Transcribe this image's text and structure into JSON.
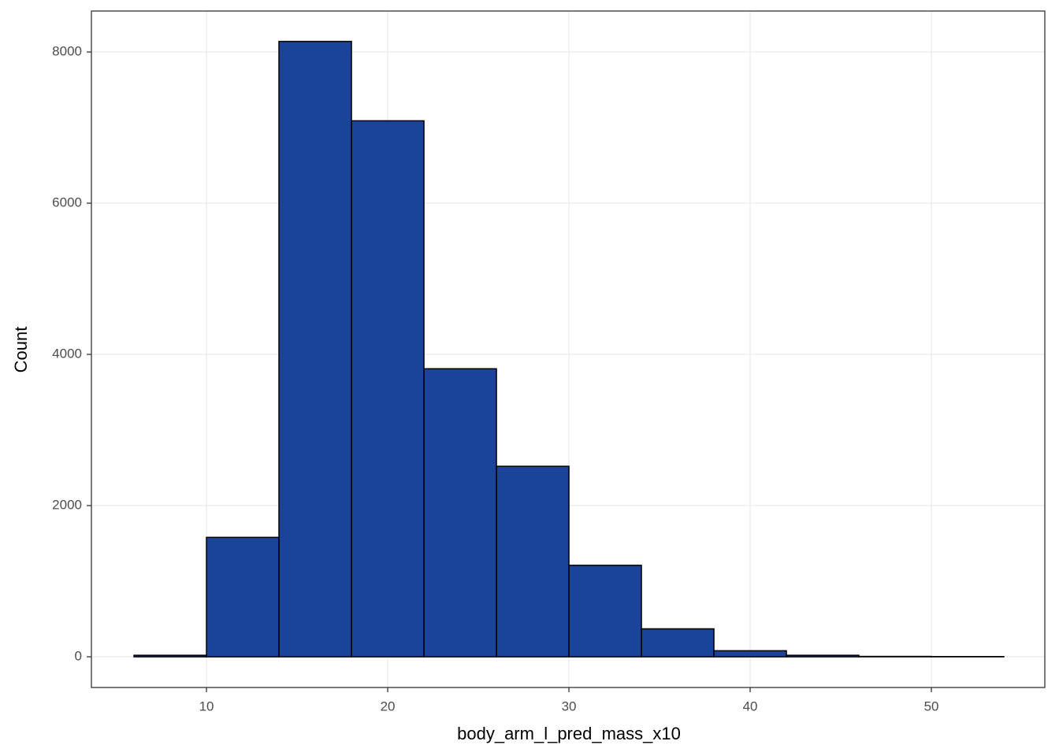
{
  "chart_data": {
    "type": "histogram",
    "x_label": "body_arm_l_pred_mass_x10",
    "y_label": "Count",
    "bins": [
      6,
      10,
      14,
      18,
      22,
      26,
      30,
      34,
      38,
      42,
      46,
      50,
      54
    ],
    "values": [
      20,
      1580,
      8140,
      7090,
      3810,
      2520,
      1210,
      370,
      80,
      20,
      5,
      3
    ],
    "color": "#1a4499",
    "edge_color": "#000000",
    "xlim": [
      3.65,
      56.26
    ],
    "xticks": [
      10,
      20,
      30,
      40,
      50
    ],
    "ylim": [
      -406,
      8542
    ],
    "yticks": [
      0,
      2000,
      4000,
      6000,
      8000
    ],
    "grid": true
  }
}
